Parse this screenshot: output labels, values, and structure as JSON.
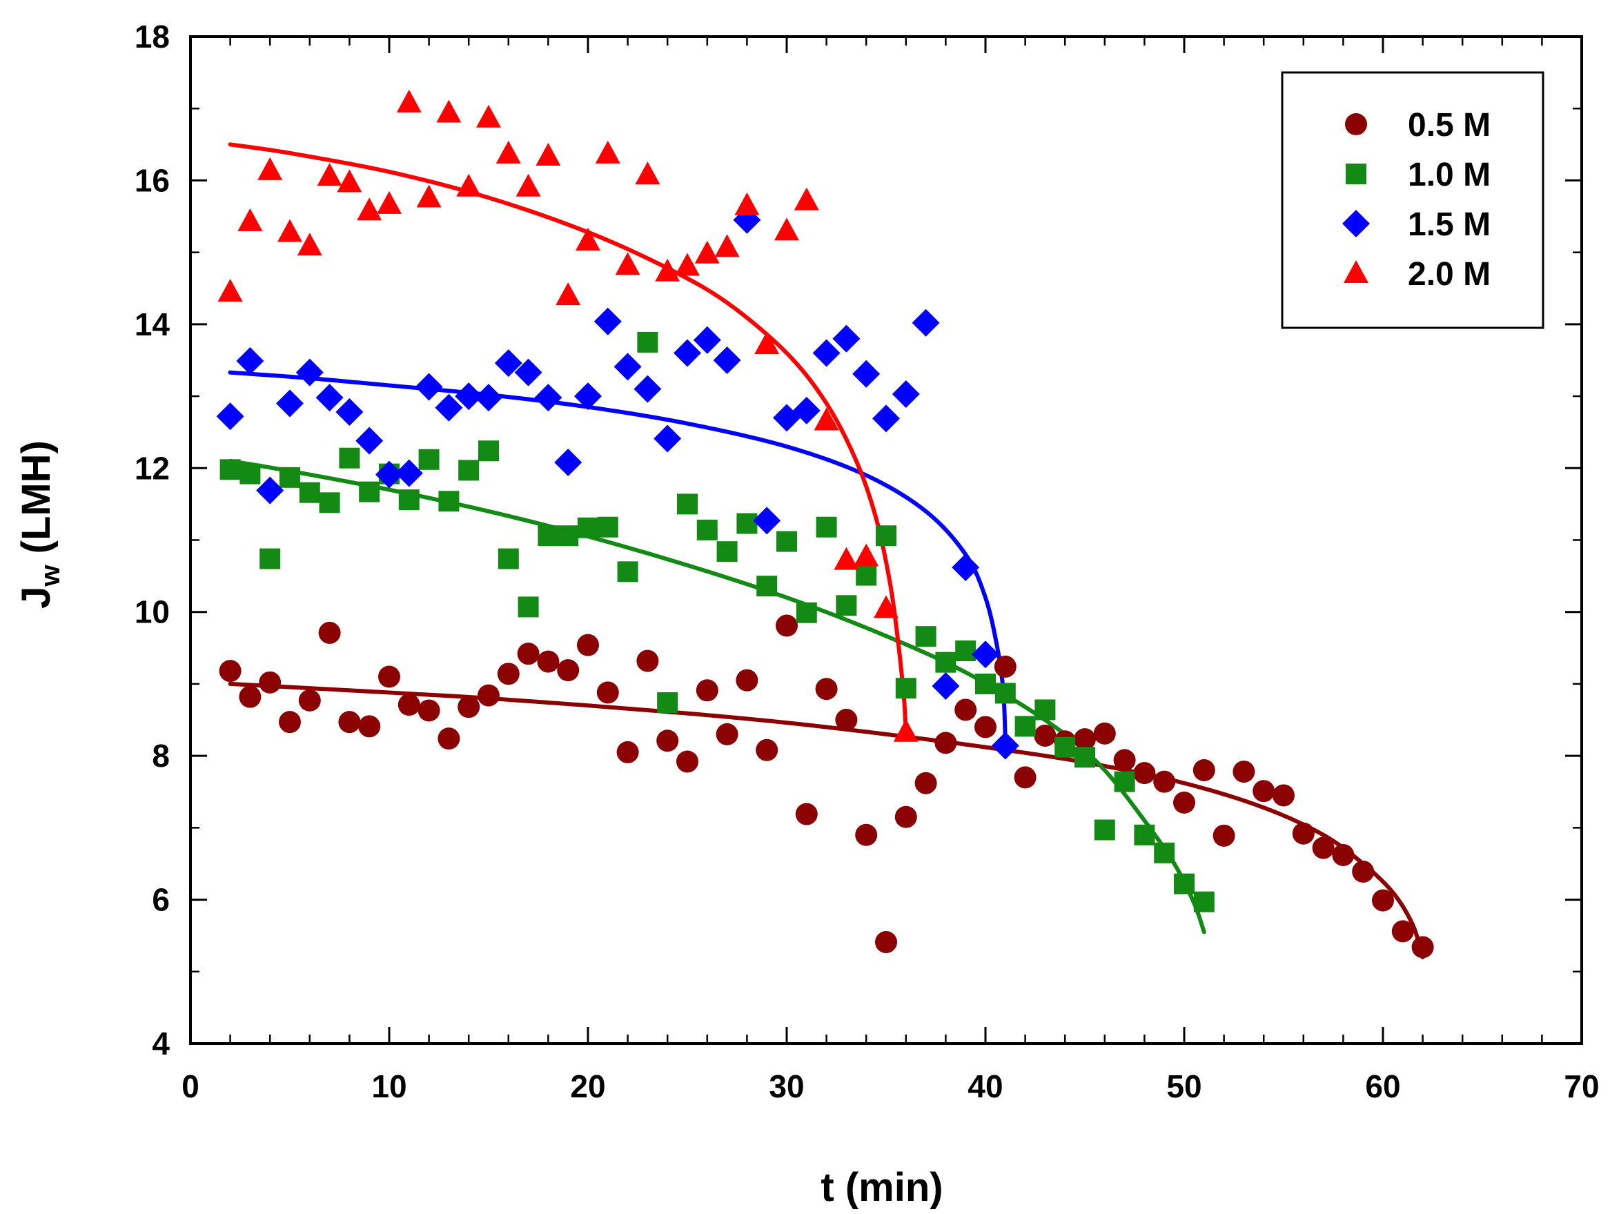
{
  "chart_data": {
    "type": "scatter",
    "title": "",
    "xlabel": "t (min)",
    "ylabel": "J",
    "ylabel_sub": "w",
    "ylabel_suffix": " (LMH)",
    "xlim": [
      0,
      70
    ],
    "ylim": [
      4,
      18
    ],
    "xticks": [
      0,
      10,
      20,
      30,
      40,
      50,
      60,
      70
    ],
    "yticks": [
      4,
      6,
      8,
      10,
      12,
      14,
      16,
      18
    ],
    "grid": false,
    "legend_position": "top-right",
    "series": [
      {
        "name": "0.5 M",
        "marker": "circle",
        "color": "#8b0000",
        "x": [
          2,
          3,
          4,
          5,
          6,
          7,
          8,
          9,
          10,
          11,
          12,
          13,
          14,
          15,
          16,
          17,
          18,
          19,
          20,
          21,
          22,
          23,
          24,
          25,
          26,
          27,
          28,
          29,
          30,
          31,
          32,
          33,
          34,
          35,
          36,
          37,
          38,
          39,
          40,
          41,
          42,
          43,
          44,
          45,
          46,
          47,
          48,
          49,
          50,
          51,
          52,
          53,
          54,
          55,
          56,
          57,
          58,
          59,
          60,
          61,
          62
        ],
        "y": [
          9.18,
          8.82,
          9.02,
          8.47,
          8.77,
          9.71,
          8.47,
          8.41,
          9.1,
          8.71,
          8.63,
          8.24,
          8.68,
          8.84,
          9.14,
          9.42,
          9.31,
          9.19,
          9.54,
          8.88,
          8.05,
          9.32,
          8.21,
          7.92,
          8.91,
          8.3,
          9.05,
          8.08,
          9.81,
          7.19,
          8.93,
          8.5,
          6.9,
          5.41,
          7.15,
          7.62,
          8.18,
          8.64,
          8.4,
          9.24,
          7.7,
          8.28,
          8.2,
          8.23,
          8.31,
          7.94,
          7.76,
          7.64,
          7.35,
          7.8,
          6.89,
          7.78,
          7.51,
          7.45,
          6.92,
          6.72,
          6.62,
          6.39,
          5.99,
          5.56,
          5.34
        ],
        "fit_x": [
          2,
          6,
          10,
          15,
          20,
          25,
          30,
          35,
          40,
          45,
          50,
          54,
          57,
          59,
          60.5,
          61.5,
          62
        ],
        "fit_y": [
          9.0,
          8.94,
          8.88,
          8.8,
          8.7,
          8.59,
          8.46,
          8.3,
          8.12,
          7.91,
          7.62,
          7.28,
          6.9,
          6.5,
          6.1,
          5.65,
          5.2
        ]
      },
      {
        "name": "1.0 M",
        "marker": "square",
        "color": "#138a13",
        "x": [
          2,
          3,
          4,
          5,
          6,
          7,
          8,
          9,
          10,
          11,
          12,
          13,
          14,
          15,
          16,
          17,
          18,
          19,
          20,
          21,
          22,
          23,
          24,
          25,
          26,
          27,
          28,
          29,
          30,
          31,
          32,
          33,
          34,
          35,
          36,
          37,
          38,
          39,
          40,
          41,
          42,
          43,
          44,
          45,
          46,
          47,
          48,
          49,
          50,
          51
        ],
        "y": [
          11.98,
          11.92,
          10.74,
          11.87,
          11.66,
          11.52,
          12.14,
          11.67,
          11.92,
          11.56,
          12.12,
          11.54,
          11.97,
          12.24,
          10.74,
          10.07,
          11.06,
          11.06,
          11.17,
          11.18,
          10.56,
          13.75,
          8.74,
          11.5,
          11.14,
          10.84,
          11.23,
          10.36,
          10.98,
          9.99,
          11.18,
          10.09,
          10.51,
          11.06,
          8.94,
          9.66,
          9.3,
          9.46,
          9.0,
          8.87,
          8.41,
          8.64,
          8.12,
          7.98,
          6.97,
          7.64,
          6.9,
          6.65,
          6.22,
          5.97
        ],
        "fit_x": [
          2,
          5,
          10,
          15,
          20,
          25,
          30,
          34,
          38,
          41,
          44,
          46,
          48,
          49.5,
          50.5,
          51
        ],
        "fit_y": [
          12.1,
          11.96,
          11.7,
          11.4,
          11.05,
          10.65,
          10.2,
          9.78,
          9.3,
          8.85,
          8.3,
          7.8,
          7.1,
          6.5,
          5.95,
          5.55
        ]
      },
      {
        "name": "1.5 M",
        "marker": "diamond",
        "color": "#0000ff",
        "x": [
          2,
          3,
          4,
          5,
          6,
          7,
          8,
          9,
          10,
          11,
          12,
          13,
          14,
          15,
          16,
          17,
          18,
          19,
          20,
          21,
          22,
          23,
          24,
          25,
          26,
          27,
          28,
          29,
          30,
          31,
          32,
          33,
          34,
          35,
          36,
          37,
          38,
          39,
          40,
          41
        ],
        "y": [
          12.72,
          13.49,
          11.69,
          12.9,
          13.33,
          12.98,
          12.78,
          12.38,
          11.91,
          11.93,
          13.13,
          12.84,
          13.0,
          12.98,
          13.46,
          13.33,
          12.98,
          12.08,
          13.0,
          14.04,
          13.41,
          13.1,
          12.41,
          13.6,
          13.78,
          13.5,
          15.45,
          11.27,
          12.7,
          12.8,
          13.6,
          13.8,
          13.31,
          12.69,
          13.03,
          14.02,
          8.97,
          10.62,
          9.41,
          8.14
        ],
        "fit_x": [
          2,
          6,
          10,
          15,
          20,
          25,
          30,
          34,
          37,
          39,
          40,
          40.6,
          40.9,
          41
        ],
        "fit_y": [
          13.33,
          13.25,
          13.15,
          13.02,
          12.85,
          12.62,
          12.3,
          11.9,
          11.4,
          10.8,
          10.2,
          9.5,
          8.9,
          8.2
        ]
      },
      {
        "name": "2.0 M",
        "marker": "triangle",
        "color": "#ff0000",
        "x": [
          2,
          3,
          4,
          5,
          6,
          7,
          8,
          9,
          10,
          11,
          12,
          13,
          14,
          15,
          16,
          17,
          18,
          19,
          20,
          21,
          22,
          23,
          24,
          25,
          26,
          27,
          28,
          29,
          30,
          31,
          32,
          33,
          34,
          35,
          36
        ],
        "y": [
          14.45,
          15.43,
          16.14,
          15.28,
          15.09,
          16.06,
          15.97,
          15.58,
          15.67,
          17.08,
          15.76,
          16.94,
          15.91,
          16.87,
          16.37,
          15.91,
          16.34,
          14.4,
          15.16,
          16.37,
          14.82,
          16.08,
          14.73,
          14.81,
          14.98,
          15.07,
          15.65,
          13.72,
          15.3,
          15.72,
          12.66,
          10.72,
          10.77,
          10.05,
          8.33
        ],
        "fit_x": [
          2,
          5,
          10,
          15,
          20,
          24,
          27,
          30,
          32,
          33.5,
          34.5,
          35.2,
          35.6,
          35.9,
          36
        ],
        "fit_y": [
          16.5,
          16.38,
          16.12,
          15.76,
          15.28,
          14.78,
          14.3,
          13.6,
          12.9,
          12.1,
          11.3,
          10.4,
          9.6,
          8.8,
          8.3
        ]
      }
    ]
  }
}
